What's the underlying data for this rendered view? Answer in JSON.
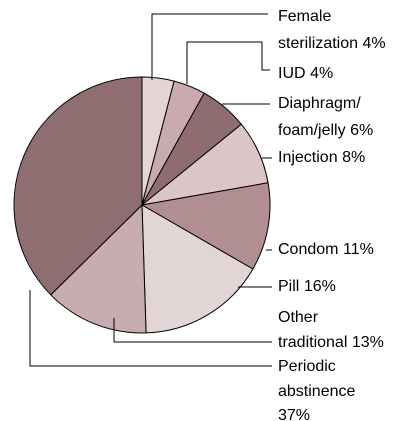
{
  "chart_data": {
    "type": "pie",
    "categories": [
      "Female sterilization",
      "IUD",
      "Diaphragm/foam/jelly",
      "Injection",
      "Condom",
      "Pill",
      "Other traditional",
      "Periodic abstinence"
    ],
    "values": [
      4,
      4,
      6,
      8,
      11,
      16,
      13,
      37
    ],
    "value_labels": [
      "4%",
      "4%",
      "6%",
      "8%",
      "11%",
      "16%",
      "13%",
      "37%"
    ],
    "colors": [
      "#e3d5d6",
      "#c9aaae",
      "#8f6c70",
      "#dcc5c7",
      "#b08e92",
      "#e2d5d6",
      "#c8adb0",
      "#8f6e72"
    ]
  }
}
